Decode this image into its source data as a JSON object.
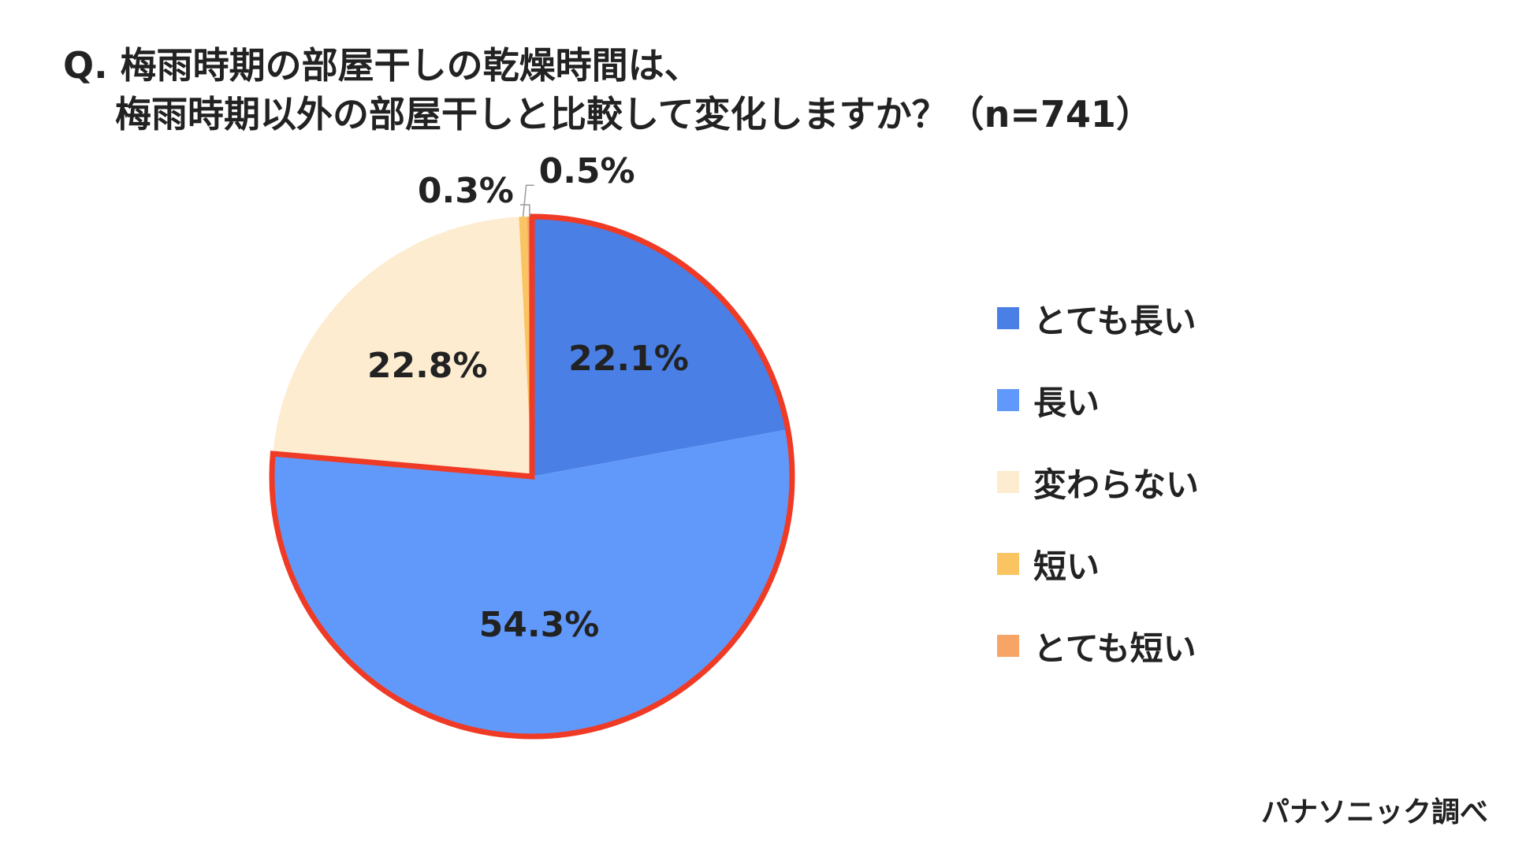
{
  "header": {
    "title_line1": "Q. 梅雨時期の部屋干しの乾燥時間は、",
    "title_line2": "梅雨時期以外の部屋干しと比較して変化しますか？（n=741）"
  },
  "source": "パナソニック調べ",
  "chart_data": {
    "type": "pie",
    "title": "Q. 梅雨時期の部屋干しの乾燥時間は、 梅雨時期以外の部屋干しと比較して変化しますか？（n=741）",
    "unit": "%",
    "legend_position": "right",
    "highlight_color": "#ef3b25",
    "highlighted_slices": [
      "とても長い",
      "長い"
    ],
    "slices": [
      {
        "label": "とても長い",
        "value": 22.1,
        "display": "22.1%",
        "color": "#4a7fe6"
      },
      {
        "label": "長い",
        "value": 54.3,
        "display": "54.3%",
        "color": "#6199fb"
      },
      {
        "label": "変わらない",
        "value": 22.8,
        "display": "22.8%",
        "color": "#fdecd0"
      },
      {
        "label": "短い",
        "value": 0.5,
        "display": "0.5%",
        "color": "#f9c461"
      },
      {
        "label": "とても短い",
        "value": 0.3,
        "display": "0.3%",
        "color": "#f6a566"
      }
    ]
  }
}
